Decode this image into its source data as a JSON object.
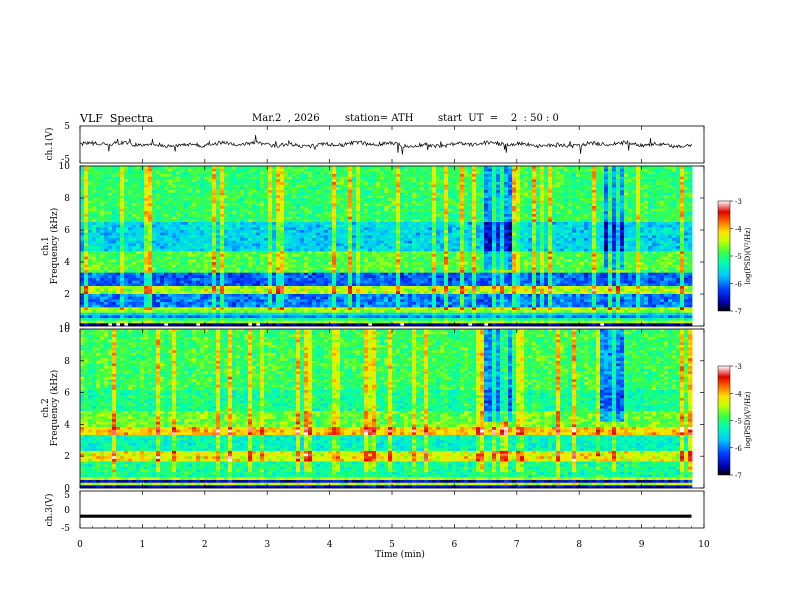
{
  "header": {
    "title": "VLF  Spectra",
    "date": "Mar.2  , 2026",
    "station": "station= ATH",
    "start": "start  UT  =    2  : 50 : 0"
  },
  "chart_data": [
    {
      "type": "line",
      "panel": "ch1-waveform",
      "ylabel": "ch.1(V)",
      "yticks": [
        "5",
        "-5"
      ],
      "ylim": [
        -5,
        5
      ],
      "x_range_min": [
        0,
        9.8
      ],
      "description_of_signal": "noisy trace near 0 V"
    },
    {
      "type": "heatmap",
      "panel": "ch1-spectrogram",
      "ylabel_top": "ch.1",
      "ylabel": "Frequency  (kHz)",
      "yticks": [
        "0",
        "2",
        "4",
        "6",
        "8",
        "10"
      ],
      "ylim": [
        0,
        10
      ],
      "colorbar": {
        "label": "log(PSD)(V²/Hz)",
        "ticks": [
          "-3",
          "-4",
          "-5",
          "-6",
          "-7"
        ],
        "range": [
          -7,
          -3
        ]
      },
      "x_range_min": [
        0,
        9.8
      ]
    },
    {
      "type": "heatmap",
      "panel": "ch2-spectrogram",
      "ylabel_top": "ch.2",
      "ylabel": "Frequency  (kHz)",
      "yticks": [
        "0",
        "2",
        "4",
        "6",
        "8",
        "10"
      ],
      "ylim": [
        0,
        10
      ],
      "colorbar": {
        "label": "log(PSD)(V²/Hz)",
        "ticks": [
          "-3",
          "-4",
          "-5",
          "-6",
          "-7"
        ],
        "range": [
          -7,
          -3
        ]
      },
      "x_range_min": [
        0,
        9.8
      ]
    },
    {
      "type": "line",
      "panel": "ch3-waveform",
      "ylabel": "ch.3(V)",
      "yticks": [
        "5",
        "0",
        "-5"
      ],
      "ylim": [
        -5,
        5
      ],
      "x_range_min": [
        0,
        9.8
      ],
      "level": -1.8
    }
  ],
  "xaxis": {
    "label": "Time  (min)",
    "ticks": [
      "0",
      "1",
      "2",
      "3",
      "4",
      "5",
      "6",
      "7",
      "8",
      "9",
      "10"
    ],
    "xlim": [
      0,
      10
    ]
  },
  "colors": {
    "colormap": [
      "#000000",
      "#0000b0",
      "#0040ff",
      "#00c8ff",
      "#00ffb0",
      "#40ff40",
      "#c8ff00",
      "#ffe000",
      "#ff6000",
      "#e00000",
      "#ffffff"
    ]
  }
}
